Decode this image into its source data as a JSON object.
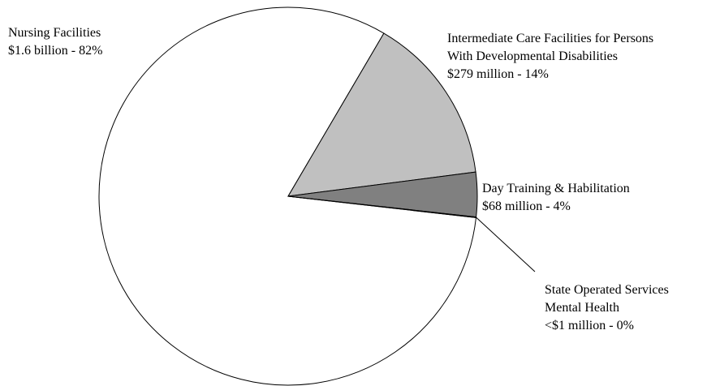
{
  "chart_data": {
    "type": "pie",
    "title": "",
    "slices": [
      {
        "label_lines": [
          "Nursing Facilities",
          "$1.6 billion - 82%"
        ],
        "name": "Nursing Facilities",
        "amount": "$1.6 billion",
        "percent_label": "82%",
        "value": 81.6,
        "color": "#ffffff"
      },
      {
        "label_lines": [
          "Intermediate Care Facilities for Persons",
          "With Developmental Disabilities",
          "$279 million - 14%"
        ],
        "name": "Intermediate Care Facilities for Persons With Developmental Disabilities",
        "amount": "$279 million",
        "percent_label": "14%",
        "value": 14.5,
        "color": "#c0c0c0"
      },
      {
        "label_lines": [
          "Day Training & Habilitation",
          "$68 million - 4%"
        ],
        "name": "Day Training & Habilitation",
        "amount": "$68 million",
        "percent_label": "4%",
        "value": 3.8,
        "color": "#808080"
      },
      {
        "label_lines": [
          "State Operated Services",
          "Mental Health",
          "<$1 million - 0%"
        ],
        "name": "State Operated Services Mental Health",
        "amount": "<$1 million",
        "percent_label": "0%",
        "value": 0.05,
        "color": "#404040"
      }
    ],
    "legend": "none",
    "data_labels": "outside"
  }
}
